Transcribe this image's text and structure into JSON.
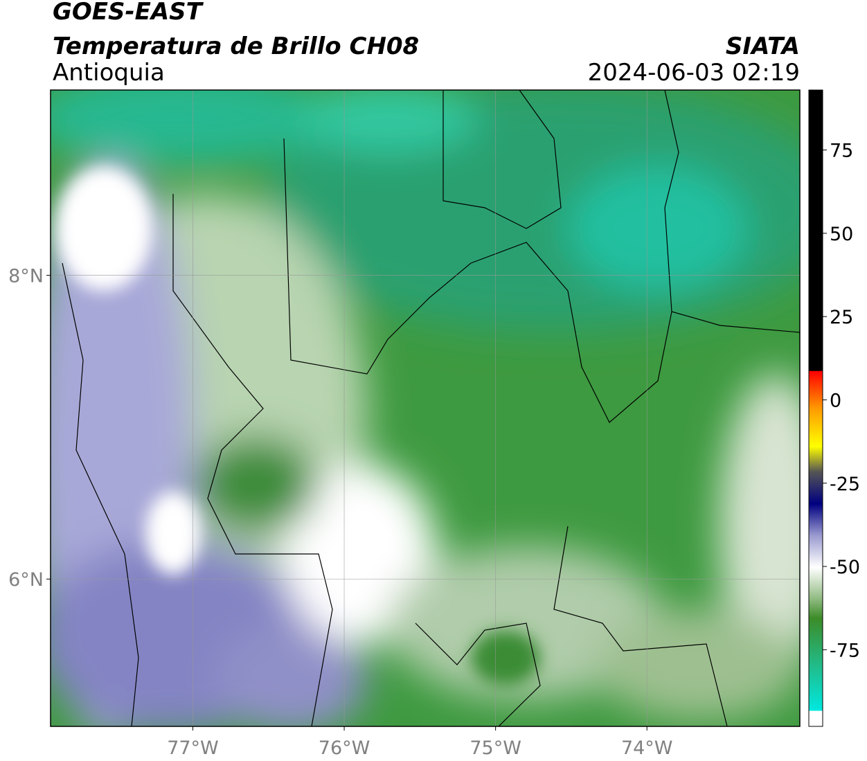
{
  "header": {
    "title": "GOES-EAST",
    "subtitle": "Temperatura de Brillo CH08",
    "region": "Antioquia",
    "source": "SIATA",
    "timestamp": "2024-06-03 02:19"
  },
  "map": {
    "xlim": [
      -77.94,
      -72.99
    ],
    "ylim": [
      5.03,
      9.22
    ],
    "xticks": [
      {
        "value": -77,
        "label": "77°W"
      },
      {
        "value": -76,
        "label": "76°W"
      },
      {
        "value": -75,
        "label": "75°W"
      },
      {
        "value": -74,
        "label": "74°W"
      }
    ],
    "yticks": [
      {
        "value": 8,
        "label": "8°N"
      },
      {
        "value": 6,
        "label": "6°N"
      }
    ],
    "grid": true
  },
  "colorbar": {
    "lim": [
      -98,
      93
    ],
    "ticks": [
      -75,
      -50,
      -25,
      0,
      25,
      50,
      75
    ]
  }
}
